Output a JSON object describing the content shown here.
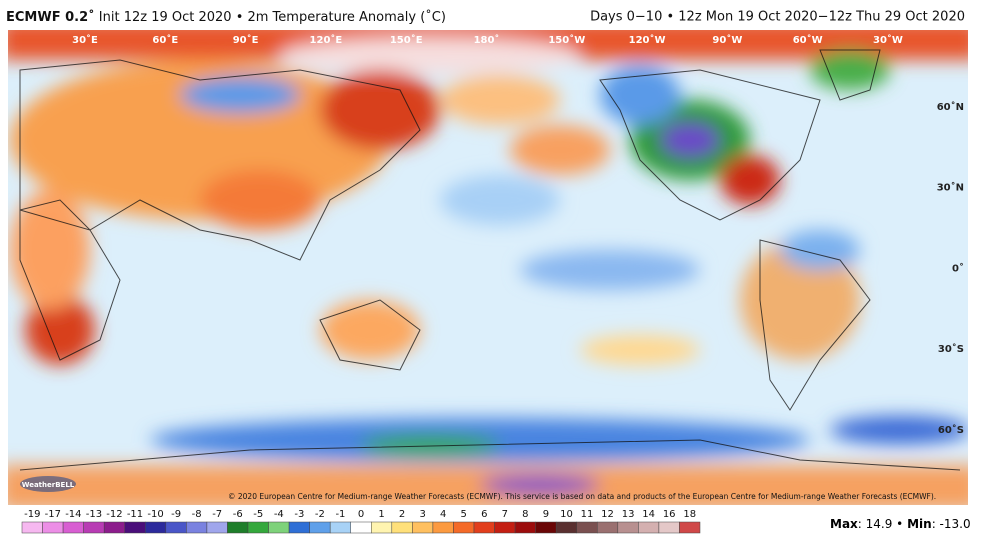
{
  "header": {
    "model": "ECMWF 0.2˚",
    "title": "Init 12z 19 Oct 2020 • 2m Temperature Anomaly (˚C)",
    "period": "Days 0−10 • 12z Mon 19 Oct 2020−12z Thu 29 Oct 2020"
  },
  "map": {
    "longitudes": [
      "30˚E",
      "60˚E",
      "90˚E",
      "120˚E",
      "150˚E",
      "180˚",
      "150˚W",
      "120˚W",
      "90˚W",
      "60˚W",
      "30˚W"
    ],
    "latitudes": [
      "60˚N",
      "30˚N",
      "0˚",
      "30˚S",
      "60˚S"
    ],
    "logo": "WeatherBELL",
    "copyright": "© 2020 European Centre for Medium-range Weather Forecasts (ECMWF). This service is based on data and products of the European Centre for Medium-range Weather Forecasts (ECMWF)."
  },
  "colorbar": {
    "labels": [
      -19,
      -17,
      -14,
      -13,
      -12,
      -11,
      -10,
      -9,
      -8,
      -7,
      -6,
      -5,
      -4,
      -3,
      -2,
      -1,
      0,
      1,
      2,
      3,
      4,
      5,
      6,
      7,
      8,
      9,
      10,
      11,
      12,
      13,
      14,
      16,
      18
    ],
    "colors": [
      "#f6b8f0",
      "#ec8ee6",
      "#d85ed2",
      "#b83cb4",
      "#8c1c8c",
      "#4a0e7a",
      "#2c2a9c",
      "#4a56c8",
      "#7a82e0",
      "#a0a6ec",
      "#1e7e2a",
      "#34a83c",
      "#7ed27a",
      "#2f6fd6",
      "#5fa0ea",
      "#a8d2f6",
      "#ffffff",
      "#fff4b0",
      "#ffe07a",
      "#ffc060",
      "#fc9a40",
      "#f46a28",
      "#e23e1c",
      "#c41e12",
      "#9c0c0c",
      "#6a0606",
      "#5a3030",
      "#7a5050",
      "#9a7070",
      "#b89090",
      "#d4b0b0",
      "#e4c8c8",
      "#d04848"
    ]
  },
  "stats": {
    "max_label": "Max",
    "max": 14.9,
    "min_label": "Min",
    "min": "-13.0"
  }
}
